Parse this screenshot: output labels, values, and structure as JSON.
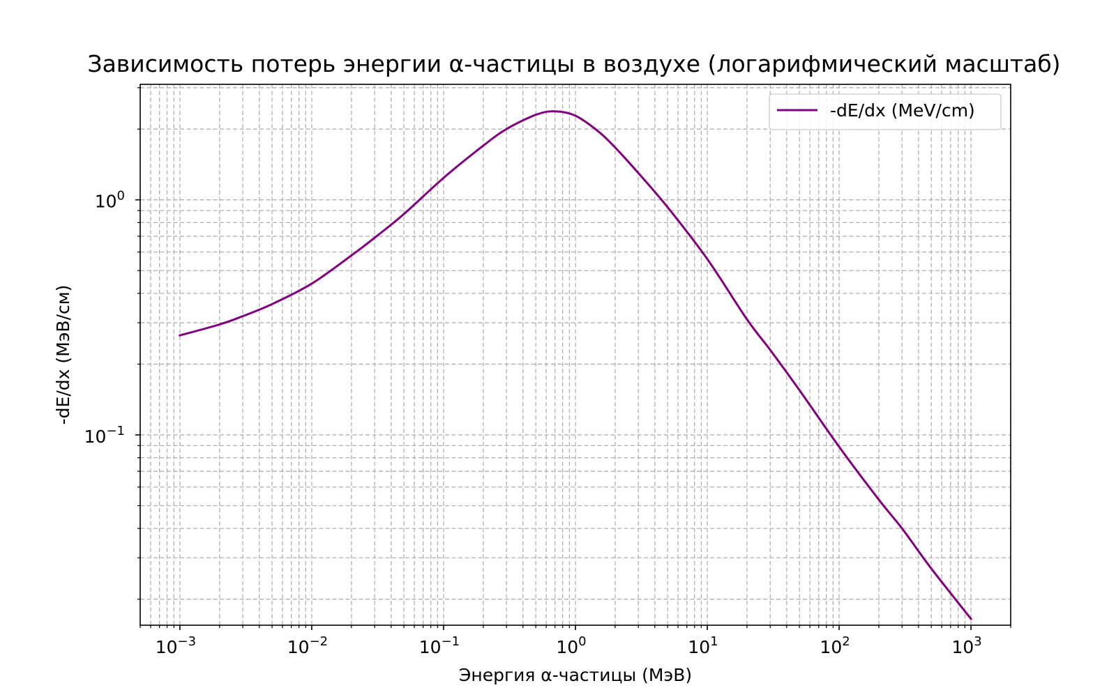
{
  "chart_data": {
    "type": "line",
    "title": "Зависимость потерь энергии α-частицы в воздухе (логарифмический масштаб)",
    "xlabel": "Энергия α-частицы (МэВ)",
    "ylabel": "-dE/dx (МэВ/см)",
    "xscale": "log",
    "yscale": "log",
    "xlim": [
      0.0005,
      2000
    ],
    "ylim": [
      0.0155,
      3.1
    ],
    "x_ticks": [
      {
        "value": 0.001,
        "base": "10",
        "exp": "−3"
      },
      {
        "value": 0.01,
        "base": "10",
        "exp": "−2"
      },
      {
        "value": 0.1,
        "base": "10",
        "exp": "−1"
      },
      {
        "value": 1,
        "base": "10",
        "exp": "0"
      },
      {
        "value": 10,
        "base": "10",
        "exp": "1"
      },
      {
        "value": 100,
        "base": "10",
        "exp": "2"
      },
      {
        "value": 1000,
        "base": "10",
        "exp": "3"
      }
    ],
    "y_ticks": [
      {
        "value": 0.1,
        "base": "10",
        "exp": "−1"
      },
      {
        "value": 1,
        "base": "10",
        "exp": "0"
      }
    ],
    "grid": true,
    "legend_position": "top-right",
    "series": [
      {
        "name": "-dE/dx (MeV/cm)",
        "color": "#800080",
        "x": [
          0.001,
          0.002,
          0.003,
          0.005,
          0.01,
          0.02,
          0.03,
          0.05,
          0.1,
          0.2,
          0.3,
          0.5,
          0.7,
          1,
          1.5,
          2,
          3,
          5,
          10,
          20,
          30,
          50,
          100,
          200,
          300,
          500,
          1000
        ],
        "y": [
          0.265,
          0.295,
          0.32,
          0.36,
          0.44,
          0.58,
          0.69,
          0.87,
          1.24,
          1.7,
          2.0,
          2.3,
          2.38,
          2.28,
          1.95,
          1.67,
          1.3,
          0.93,
          0.56,
          0.31,
          0.23,
          0.155,
          0.089,
          0.053,
          0.04,
          0.027,
          0.0165
        ]
      }
    ]
  }
}
